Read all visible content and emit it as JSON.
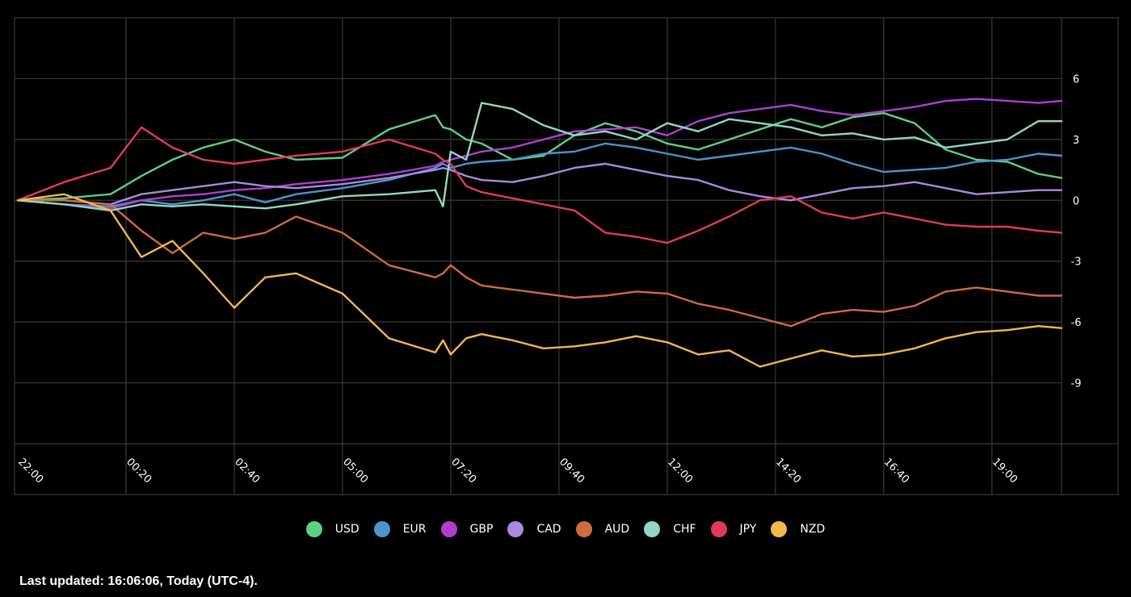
{
  "chart_data": {
    "type": "line",
    "ylim": [
      -12,
      9
    ],
    "y_ticks": [
      6,
      3,
      0,
      -3,
      -6,
      -9
    ],
    "x_range": [
      "22:00",
      "20:30"
    ],
    "x_ticks": [
      "22:00",
      "00:20",
      "02:40",
      "05:00",
      "07:20",
      "09:40",
      "12:00",
      "14:20",
      "16:40",
      "19:00"
    ],
    "grid": true,
    "legend_position": "bottom",
    "x": [
      "22:00",
      "23:00",
      "00:00",
      "00:40",
      "01:20",
      "02:00",
      "02:40",
      "03:20",
      "04:00",
      "05:00",
      "06:00",
      "07:00",
      "07:10",
      "07:20",
      "07:40",
      "08:00",
      "08:40",
      "09:20",
      "10:00",
      "10:40",
      "11:20",
      "12:00",
      "12:40",
      "13:20",
      "14:00",
      "14:40",
      "15:20",
      "16:00",
      "16:40",
      "17:20",
      "18:00",
      "18:40",
      "19:20",
      "20:00",
      "20:30"
    ],
    "series": [
      {
        "name": "USD",
        "color": "#5ecf84",
        "values": [
          0,
          0.1,
          0.3,
          1.2,
          2.0,
          2.6,
          3.0,
          2.4,
          2.0,
          2.1,
          3.5,
          4.2,
          3.6,
          3.5,
          3.0,
          2.8,
          2.0,
          2.2,
          3.2,
          3.8,
          3.4,
          2.8,
          2.5,
          3.0,
          3.5,
          4.0,
          3.6,
          4.1,
          4.3,
          3.8,
          2.5,
          2.0,
          1.9,
          1.3,
          1.1
        ]
      },
      {
        "name": "EUR",
        "color": "#4b95cd",
        "values": [
          0,
          -0.2,
          -0.3,
          0,
          -0.2,
          0,
          0.3,
          -0.1,
          0.3,
          0.6,
          1.0,
          1.6,
          1.8,
          1.6,
          1.8,
          1.9,
          2.0,
          2.3,
          2.4,
          2.8,
          2.6,
          2.3,
          2.0,
          2.2,
          2.4,
          2.6,
          2.3,
          1.8,
          1.4,
          1.5,
          1.6,
          1.9,
          2.0,
          2.3,
          2.2
        ]
      },
      {
        "name": "GBP",
        "color": "#b03fd0",
        "values": [
          0,
          -0.2,
          -0.4,
          0,
          0.2,
          0.3,
          0.5,
          0.6,
          0.8,
          1.0,
          1.3,
          1.7,
          1.9,
          2.0,
          2.2,
          2.4,
          2.6,
          3.0,
          3.4,
          3.5,
          3.6,
          3.2,
          3.9,
          4.3,
          4.5,
          4.7,
          4.4,
          4.2,
          4.4,
          4.6,
          4.9,
          5.0,
          4.9,
          4.8,
          4.9
        ]
      },
      {
        "name": "CAD",
        "color": "#a98ae0",
        "values": [
          0,
          0,
          -0.2,
          0.3,
          0.5,
          0.7,
          0.9,
          0.7,
          0.6,
          0.8,
          1.1,
          1.5,
          1.6,
          1.5,
          1.2,
          1.0,
          0.9,
          1.2,
          1.6,
          1.8,
          1.5,
          1.2,
          1.0,
          0.5,
          0.2,
          0,
          0.3,
          0.6,
          0.7,
          0.9,
          0.6,
          0.3,
          0.4,
          0.5,
          0.5
        ]
      },
      {
        "name": "AUD",
        "color": "#cf6c3e",
        "values": [
          0,
          0,
          -0.2,
          -1.5,
          -2.6,
          -1.6,
          -1.9,
          -1.6,
          -0.8,
          -1.6,
          -3.2,
          -3.8,
          -3.6,
          -3.2,
          -3.8,
          -4.2,
          -4.4,
          -4.6,
          -4.8,
          -4.7,
          -4.5,
          -4.6,
          -5.1,
          -5.4,
          -5.8,
          -6.2,
          -5.6,
          -5.4,
          -5.5,
          -5.2,
          -4.5,
          -4.3,
          -4.5,
          -4.7,
          -4.7
        ]
      },
      {
        "name": "CHF",
        "color": "#8fd8c8",
        "values": [
          0,
          -0.2,
          -0.5,
          -0.2,
          -0.3,
          -0.2,
          -0.3,
          -0.4,
          -0.2,
          0.2,
          0.3,
          0.5,
          -0.3,
          2.4,
          2.0,
          4.8,
          4.5,
          3.7,
          3.2,
          3.4,
          3.0,
          3.8,
          3.4,
          4.0,
          3.8,
          3.6,
          3.2,
          3.3,
          3.0,
          3.1,
          2.6,
          2.8,
          3.0,
          3.9,
          3.9
        ]
      },
      {
        "name": "JPY",
        "color": "#e03a5d",
        "values": [
          0,
          0.9,
          1.6,
          3.6,
          2.6,
          2.0,
          1.8,
          2.0,
          2.2,
          2.4,
          3.0,
          2.3,
          2.0,
          1.8,
          0.7,
          0.4,
          0.1,
          -0.2,
          -0.5,
          -1.6,
          -1.8,
          -2.1,
          -1.5,
          -0.8,
          0,
          0.2,
          -0.6,
          -0.9,
          -0.6,
          -0.9,
          -1.2,
          -1.3,
          -1.3,
          -1.5,
          -1.6
        ]
      },
      {
        "name": "NZD",
        "color": "#f2b84c",
        "values": [
          0,
          0.3,
          -0.5,
          -2.8,
          -2.0,
          -3.6,
          -5.3,
          -3.8,
          -3.6,
          -4.6,
          -6.8,
          -7.5,
          -6.9,
          -7.6,
          -6.8,
          -6.6,
          -6.9,
          -7.3,
          -7.2,
          -7.0,
          -6.7,
          -7.0,
          -7.6,
          -7.4,
          -8.2,
          -7.8,
          -7.4,
          -7.7,
          -7.6,
          -7.3,
          -6.8,
          -6.5,
          -6.4,
          -6.2,
          -6.3
        ]
      }
    ]
  },
  "footer": {
    "last_updated": "Last updated: 16:06:06, Today (UTC-4)."
  }
}
